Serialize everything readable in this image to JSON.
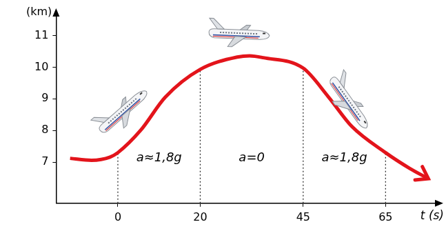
{
  "chart_data": {
    "type": "line",
    "x_label": "t (s)",
    "y_label": "(km)",
    "x": [
      -11.6,
      -6.4,
      -1.9,
      0,
      5.5,
      11.5,
      20,
      29,
      32,
      35.3,
      45,
      51.2,
      56.8,
      65,
      70.9,
      75.1
    ],
    "values": [
      7.12,
      7.06,
      7.16,
      7.3,
      8.0,
      9.05,
      9.93,
      10.32,
      10.36,
      10.3,
      9.97,
      9.05,
      8.13,
      7.3,
      6.8,
      6.5
    ],
    "color": "#e3141b",
    "annotations": [
      "a≈1,8g",
      "a=0",
      "a≈1,8g"
    ],
    "xlim": [
      -15,
      77
    ],
    "xticks": [
      0,
      20,
      45,
      65
    ],
    "ylim": [
      5.7,
      11.6
    ],
    "yticks": [
      7,
      8,
      9,
      10,
      11
    ],
    "grid": false
  }
}
